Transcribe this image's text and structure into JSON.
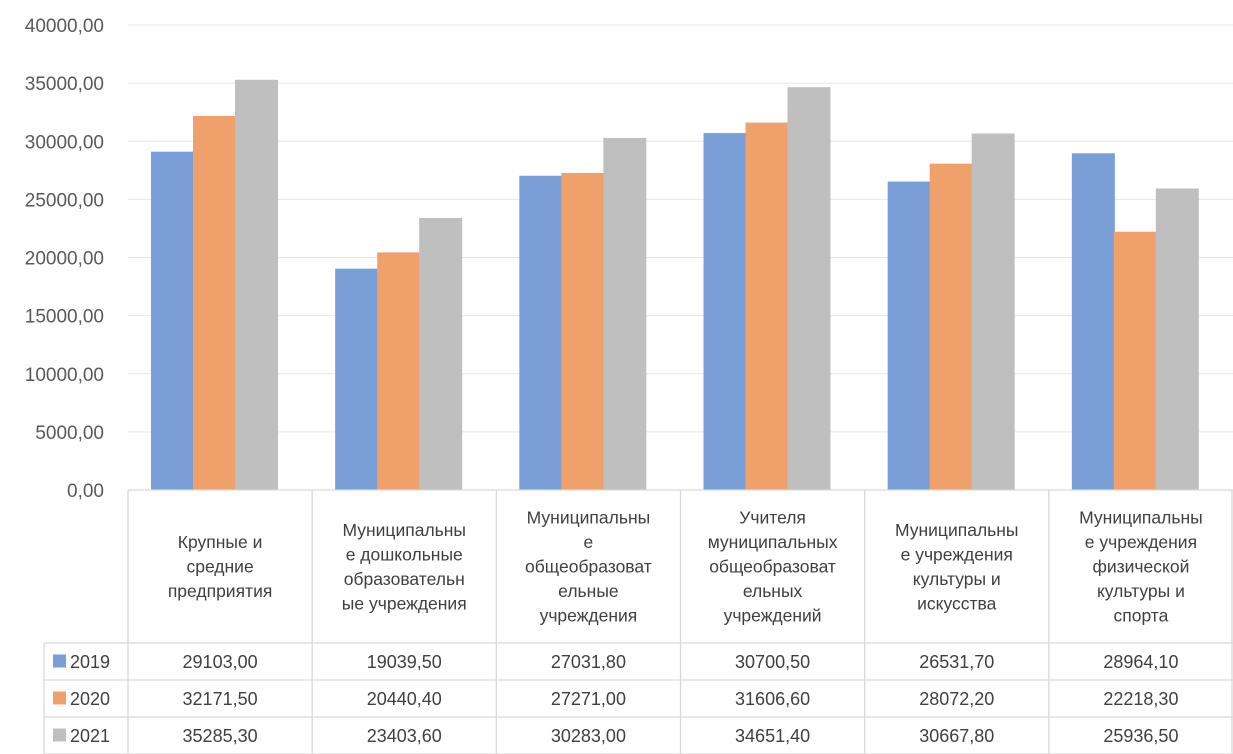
{
  "chart_data": {
    "type": "bar",
    "title": "",
    "xlabel": "",
    "ylabel": "",
    "ylim": [
      0,
      40000
    ],
    "yticks": [
      "0,00",
      "5000,00",
      "10000,00",
      "15000,00",
      "20000,00",
      "25000,00",
      "30000,00",
      "35000,00",
      "40000,00"
    ],
    "grid": true,
    "legend": "data-table-left",
    "categories": [
      [
        "Крупные и",
        "средние",
        "предприятия"
      ],
      [
        "Муниципальны",
        "е дошкольные",
        "образовательн",
        "ые учреждения"
      ],
      [
        "Муниципальны",
        "е",
        "общеобразоват",
        "ельные",
        "учреждения"
      ],
      [
        "Учителя",
        "муниципальных",
        "общеобразоват",
        "ельных",
        "учреждений"
      ],
      [
        "Муниципальны",
        "е учреждения",
        "культуры и",
        "искусства"
      ],
      [
        "Муниципальны",
        "е учреждения",
        "физической",
        "культуры и",
        "спорта"
      ]
    ],
    "series": [
      {
        "name": "2019",
        "color": "#7a9fd6",
        "values": [
          29103.0,
          19039.5,
          27031.8,
          30700.5,
          26531.7,
          28964.1
        ],
        "labels": [
          "29103,00",
          "19039,50",
          "27031,80",
          "30700,50",
          "26531,70",
          "28964,10"
        ]
      },
      {
        "name": "2020",
        "color": "#f0a06a",
        "values": [
          32171.5,
          20440.4,
          27271.0,
          31606.6,
          28072.2,
          22218.3
        ],
        "labels": [
          "32171,50",
          "20440,40",
          "27271,00",
          "31606,60",
          "28072,20",
          "22218,30"
        ]
      },
      {
        "name": "2021",
        "color": "#bfbfbf",
        "values": [
          35285.3,
          23403.6,
          30283.0,
          34651.4,
          30667.8,
          25936.5
        ],
        "labels": [
          "35285,30",
          "23403,60",
          "30283,00",
          "34651,40",
          "30667,80",
          "25936,50"
        ]
      }
    ]
  }
}
